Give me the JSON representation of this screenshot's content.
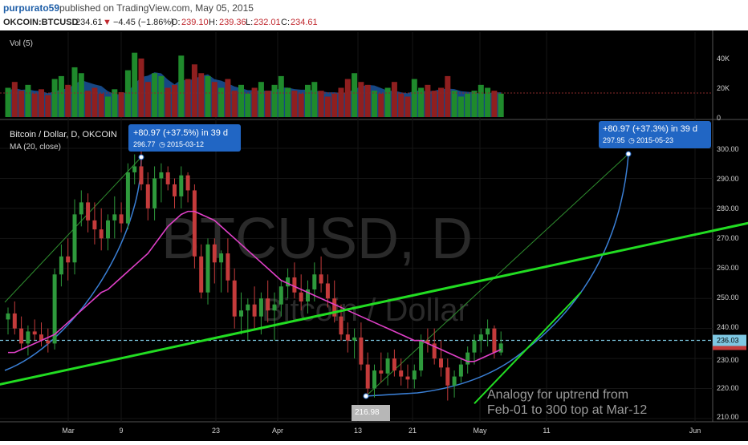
{
  "header": {
    "author": "purpurato59",
    "published": "published on TradingView.com, May 05, 2015",
    "symbol": "OKCOIN:BTCUSD",
    "last": "234.61",
    "change_arrow": "▼",
    "change": "−4.45 (−1.86%)",
    "o_label": "O:",
    "o_value": "239.10",
    "h_label": "H:",
    "h_value": "239.36",
    "l_label": "L:",
    "l_value": "232.01",
    "c_label": "C:",
    "c_value": "234.61"
  },
  "volume_pane": {
    "label": "Vol (5)",
    "axis_labels": [
      "40K",
      "20K",
      "0"
    ]
  },
  "price_pane": {
    "title": "Bitcoin / Dollar, D, OKCOIN",
    "indicator": "MA (20, close)",
    "watermark_symbol": "BTCUSD, D",
    "watermark_name": "Bitcoin / Dollar",
    "last_price_tag": "236.03",
    "axis_labels": [
      "300.00",
      "290.00",
      "280.00",
      "270.00",
      "260.00",
      "250.00",
      "240.00",
      "230.00",
      "220.00",
      "210.00"
    ],
    "low_label": "216.98",
    "callout_left": {
      "line1": "+80.97 (+37.5%) in 39 d",
      "line2": "296.77",
      "line3": "2015-03-12"
    },
    "callout_right": {
      "line1": "+80.97 (+37.3%) in 39 d",
      "line2": "297.95",
      "line3": "2015-05-23"
    },
    "annotation": [
      "Analogy for uptrend from",
      "Feb-01 to 300 top at Mar-12"
    ]
  },
  "time_axis": [
    "Mar",
    "9",
    "23",
    "Apr",
    "13",
    "21",
    "May",
    "11",
    "Jun"
  ],
  "colors": {
    "up": "#2e9a3c",
    "down": "#c43b3b",
    "ma": "#e040c8",
    "arc": "#3a7fd5",
    "trend": "#22dd22",
    "callout": "#2166c4",
    "hline": "#7ec8e3"
  },
  "chart_data": {
    "type": "candlestick",
    "ylim": [
      207,
      304
    ],
    "candles": [
      [
        243,
        247,
        238,
        245
      ],
      [
        245,
        249,
        238,
        240
      ],
      [
        240,
        244,
        233,
        235
      ],
      [
        235,
        241,
        231,
        239
      ],
      [
        239,
        243,
        236,
        238
      ],
      [
        238,
        242,
        234,
        236
      ],
      [
        236,
        240,
        232,
        235
      ],
      [
        235,
        260,
        233,
        258
      ],
      [
        258,
        268,
        254,
        264
      ],
      [
        264,
        270,
        256,
        262
      ],
      [
        262,
        283,
        258,
        278
      ],
      [
        278,
        286,
        274,
        282
      ],
      [
        282,
        285,
        272,
        276
      ],
      [
        276,
        282,
        268,
        273
      ],
      [
        273,
        280,
        266,
        270
      ],
      [
        270,
        278,
        266,
        276
      ],
      [
        276,
        284,
        270,
        278
      ],
      [
        278,
        282,
        272,
        275
      ],
      [
        275,
        295,
        273,
        292
      ],
      [
        292,
        298,
        288,
        294
      ],
      [
        294,
        299,
        286,
        288
      ],
      [
        288,
        292,
        276,
        280
      ],
      [
        280,
        294,
        276,
        290
      ],
      [
        290,
        295,
        282,
        292
      ],
      [
        292,
        294,
        286,
        288
      ],
      [
        288,
        290,
        280,
        284
      ],
      [
        284,
        294,
        280,
        291
      ],
      [
        291,
        292,
        282,
        286
      ],
      [
        286,
        288,
        260,
        264
      ],
      [
        264,
        268,
        250,
        252
      ],
      [
        252,
        270,
        248,
        268
      ],
      [
        268,
        270,
        255,
        262
      ],
      [
        262,
        266,
        252,
        265
      ],
      [
        265,
        270,
        252,
        256
      ],
      [
        256,
        260,
        240,
        244
      ],
      [
        244,
        252,
        238,
        246
      ],
      [
        246,
        250,
        236,
        248
      ],
      [
        248,
        254,
        240,
        244
      ],
      [
        244,
        252,
        238,
        250
      ],
      [
        250,
        256,
        242,
        246
      ],
      [
        246,
        252,
        236,
        248
      ],
      [
        248,
        256,
        244,
        254
      ],
      [
        254,
        260,
        250,
        257
      ],
      [
        257,
        262,
        250,
        252
      ],
      [
        252,
        258,
        246,
        249
      ],
      [
        249,
        256,
        245,
        253
      ],
      [
        253,
        262,
        249,
        258
      ],
      [
        258,
        264,
        252,
        255
      ],
      [
        255,
        258,
        247,
        250
      ],
      [
        250,
        256,
        242,
        244
      ],
      [
        244,
        248,
        236,
        238
      ],
      [
        238,
        242,
        232,
        236
      ],
      [
        236,
        240,
        230,
        237
      ],
      [
        237,
        242,
        226,
        228
      ],
      [
        228,
        232,
        218,
        220
      ],
      [
        220,
        228,
        217,
        226
      ],
      [
        226,
        232,
        222,
        225
      ],
      [
        225,
        232,
        221,
        230
      ],
      [
        230,
        233,
        224,
        226
      ],
      [
        226,
        230,
        221,
        224
      ],
      [
        224,
        228,
        220,
        223
      ],
      [
        223,
        228,
        220,
        226
      ],
      [
        226,
        238,
        224,
        236
      ],
      [
        236,
        240,
        232,
        235
      ],
      [
        235,
        240,
        228,
        230
      ],
      [
        230,
        236,
        224,
        227
      ],
      [
        227,
        230,
        216,
        221
      ],
      [
        221,
        226,
        217,
        224
      ],
      [
        224,
        230,
        222,
        228
      ],
      [
        228,
        234,
        225,
        232
      ],
      [
        232,
        238,
        228,
        236
      ],
      [
        236,
        240,
        232,
        238
      ],
      [
        238,
        243,
        234,
        240
      ],
      [
        240,
        241,
        230,
        232
      ],
      [
        232,
        239,
        231,
        235
      ]
    ],
    "volume": [
      20,
      24,
      18,
      22,
      16,
      19,
      15,
      26,
      28,
      22,
      34,
      30,
      18,
      20,
      16,
      14,
      19,
      17,
      32,
      44,
      40,
      24,
      30,
      28,
      20,
      22,
      42,
      26,
      36,
      30,
      28,
      24,
      20,
      26,
      18,
      22,
      16,
      20,
      24,
      18,
      22,
      28,
      20,
      18,
      16,
      22,
      24,
      18,
      14,
      16,
      20,
      26,
      30,
      24,
      22,
      18,
      16,
      20,
      24,
      16,
      14,
      26,
      20,
      22,
      18,
      20,
      28,
      18,
      14,
      16,
      18,
      22,
      20,
      18,
      16
    ],
    "ma20": [
      232,
      232,
      233,
      234,
      235,
      236,
      237,
      238,
      240,
      242,
      244,
      246,
      248,
      250,
      252,
      253,
      255,
      257,
      259,
      261,
      263,
      265,
      268,
      271,
      274,
      276,
      278,
      279,
      279,
      278,
      277,
      276,
      274,
      272,
      270,
      268,
      266,
      264,
      262,
      260,
      258,
      256,
      255,
      254,
      253,
      252,
      251,
      250,
      249,
      248,
      247,
      246,
      245,
      244,
      243,
      242,
      241,
      240,
      239,
      238,
      237,
      236,
      236,
      235,
      234,
      233,
      232,
      231,
      230,
      229,
      229,
      230,
      231,
      232,
      233
    ],
    "trend_long": [
      [
        -2,
        221
      ],
      [
        113,
        276
      ]
    ],
    "trend_short": [
      [
        70,
        215
      ],
      [
        86,
        252
      ]
    ],
    "hline": 236.03
  }
}
